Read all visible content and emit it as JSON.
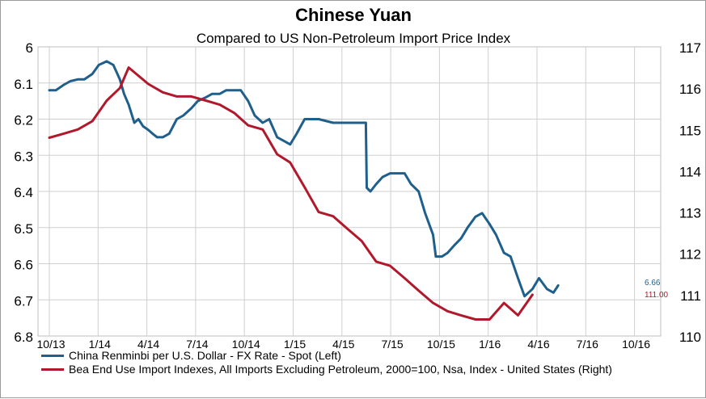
{
  "chart_data": {
    "type": "line",
    "title": "Chinese Yuan",
    "subtitle": "Compared to US Non-Petroleum Import Price Index",
    "x_tick_labels": [
      "10/13",
      "1/14",
      "4/14",
      "7/14",
      "10/14",
      "1/15",
      "4/15",
      "7/15",
      "10/15",
      "1/16",
      "4/16",
      "7/16",
      "10/16"
    ],
    "left_axis": {
      "ylim": [
        6.0,
        6.8
      ],
      "inverted": true,
      "ticks": [
        "6",
        "6.1",
        "6.2",
        "6.3",
        "6.4",
        "6.5",
        "6.6",
        "6.7",
        "6.8"
      ]
    },
    "right_axis": {
      "ylim": [
        110,
        117
      ],
      "ticks": [
        "117",
        "116",
        "115",
        "114",
        "113",
        "112",
        "111",
        "110"
      ]
    },
    "grid": true,
    "legend_position": "bottom",
    "series": [
      {
        "name": "China Renminbi per U.S. Dollar - FX Rate - Spot  (Left)",
        "axis": "left",
        "color": "#1f5f8b",
        "end_label": "6.66",
        "points": [
          [
            "2013-10-01",
            6.12
          ],
          [
            "2013-10-15",
            6.12
          ],
          [
            "2013-11-01",
            6.105
          ],
          [
            "2013-11-15",
            6.095
          ],
          [
            "2013-12-01",
            6.09
          ],
          [
            "2013-12-15",
            6.09
          ],
          [
            "2014-01-01",
            6.075
          ],
          [
            "2014-01-15",
            6.05
          ],
          [
            "2014-02-01",
            6.04
          ],
          [
            "2014-02-15",
            6.05
          ],
          [
            "2014-03-01",
            6.09
          ],
          [
            "2014-03-10",
            6.13
          ],
          [
            "2014-03-20",
            6.16
          ],
          [
            "2014-04-01",
            6.21
          ],
          [
            "2014-04-10",
            6.2
          ],
          [
            "2014-04-20",
            6.22
          ],
          [
            "2014-05-01",
            6.23
          ],
          [
            "2014-05-10",
            6.24
          ],
          [
            "2014-05-20",
            6.25
          ],
          [
            "2014-06-01",
            6.25
          ],
          [
            "2014-06-15",
            6.24
          ],
          [
            "2014-07-01",
            6.2
          ],
          [
            "2014-07-15",
            6.19
          ],
          [
            "2014-08-01",
            6.17
          ],
          [
            "2014-08-15",
            6.15
          ],
          [
            "2014-09-01",
            6.14
          ],
          [
            "2014-09-15",
            6.13
          ],
          [
            "2014-10-01",
            6.13
          ],
          [
            "2014-10-15",
            6.12
          ],
          [
            "2014-11-01",
            6.12
          ],
          [
            "2014-11-15",
            6.12
          ],
          [
            "2014-12-01",
            6.15
          ],
          [
            "2014-12-15",
            6.19
          ],
          [
            "2015-01-01",
            6.21
          ],
          [
            "2015-01-15",
            6.2
          ],
          [
            "2015-02-01",
            6.25
          ],
          [
            "2015-02-15",
            6.26
          ],
          [
            "2015-03-01",
            6.27
          ],
          [
            "2015-03-15",
            6.24
          ],
          [
            "2015-04-01",
            6.2
          ],
          [
            "2015-05-01",
            6.2
          ],
          [
            "2015-06-01",
            6.21
          ],
          [
            "2015-07-01",
            6.21
          ],
          [
            "2015-08-10",
            6.21
          ],
          [
            "2015-08-12",
            6.39
          ],
          [
            "2015-08-20",
            6.4
          ],
          [
            "2015-09-01",
            6.38
          ],
          [
            "2015-09-15",
            6.36
          ],
          [
            "2015-10-01",
            6.35
          ],
          [
            "2015-10-15",
            6.35
          ],
          [
            "2015-11-01",
            6.35
          ],
          [
            "2015-11-15",
            6.38
          ],
          [
            "2015-12-01",
            6.4
          ],
          [
            "2015-12-15",
            6.46
          ],
          [
            "2016-01-01",
            6.52
          ],
          [
            "2016-01-07",
            6.58
          ],
          [
            "2016-01-20",
            6.58
          ],
          [
            "2016-02-01",
            6.57
          ],
          [
            "2016-02-15",
            6.55
          ],
          [
            "2016-03-01",
            6.53
          ],
          [
            "2016-03-15",
            6.5
          ],
          [
            "2016-04-01",
            6.47
          ],
          [
            "2016-04-15",
            6.46
          ],
          [
            "2016-05-01",
            6.49
          ],
          [
            "2016-05-15",
            6.52
          ],
          [
            "2016-06-01",
            6.57
          ],
          [
            "2016-06-15",
            6.58
          ],
          [
            "2016-07-01",
            6.64
          ],
          [
            "2016-07-15",
            6.69
          ],
          [
            "2016-08-01",
            6.67
          ],
          [
            "2016-08-15",
            6.64
          ],
          [
            "2016-09-01",
            6.67
          ],
          [
            "2016-09-15",
            6.68
          ],
          [
            "2016-09-25",
            6.66
          ]
        ]
      },
      {
        "name": "Bea End Use Import Indexes, All Imports Excluding Petroleum, 2000=100, Nsa, Index - United States  (Right)",
        "axis": "right",
        "color": "#b2182b",
        "end_label": "111.00",
        "points": [
          [
            "2013-10-01",
            114.8
          ],
          [
            "2013-11-01",
            114.9
          ],
          [
            "2013-12-01",
            115.0
          ],
          [
            "2014-01-01",
            115.2
          ],
          [
            "2014-02-01",
            115.7
          ],
          [
            "2014-03-01",
            116.0
          ],
          [
            "2014-03-20",
            116.5
          ],
          [
            "2014-05-01",
            116.1
          ],
          [
            "2014-06-01",
            115.9
          ],
          [
            "2014-07-01",
            115.8
          ],
          [
            "2014-08-01",
            115.8
          ],
          [
            "2014-09-01",
            115.7
          ],
          [
            "2014-10-01",
            115.6
          ],
          [
            "2014-11-01",
            115.4
          ],
          [
            "2014-12-01",
            115.1
          ],
          [
            "2015-01-01",
            115.0
          ],
          [
            "2015-02-01",
            114.4
          ],
          [
            "2015-03-01",
            114.2
          ],
          [
            "2015-04-01",
            113.6
          ],
          [
            "2015-05-01",
            113.0
          ],
          [
            "2015-06-01",
            112.9
          ],
          [
            "2015-07-01",
            112.6
          ],
          [
            "2015-08-01",
            112.3
          ],
          [
            "2015-09-01",
            111.8
          ],
          [
            "2015-10-01",
            111.7
          ],
          [
            "2015-11-01",
            111.4
          ],
          [
            "2015-12-01",
            111.1
          ],
          [
            "2016-01-01",
            110.8
          ],
          [
            "2016-02-01",
            110.6
          ],
          [
            "2016-03-01",
            110.5
          ],
          [
            "2016-04-01",
            110.4
          ],
          [
            "2016-05-01",
            110.4
          ],
          [
            "2016-06-01",
            110.8
          ],
          [
            "2016-07-01",
            110.5
          ],
          [
            "2016-08-01",
            111.0
          ]
        ]
      }
    ]
  }
}
